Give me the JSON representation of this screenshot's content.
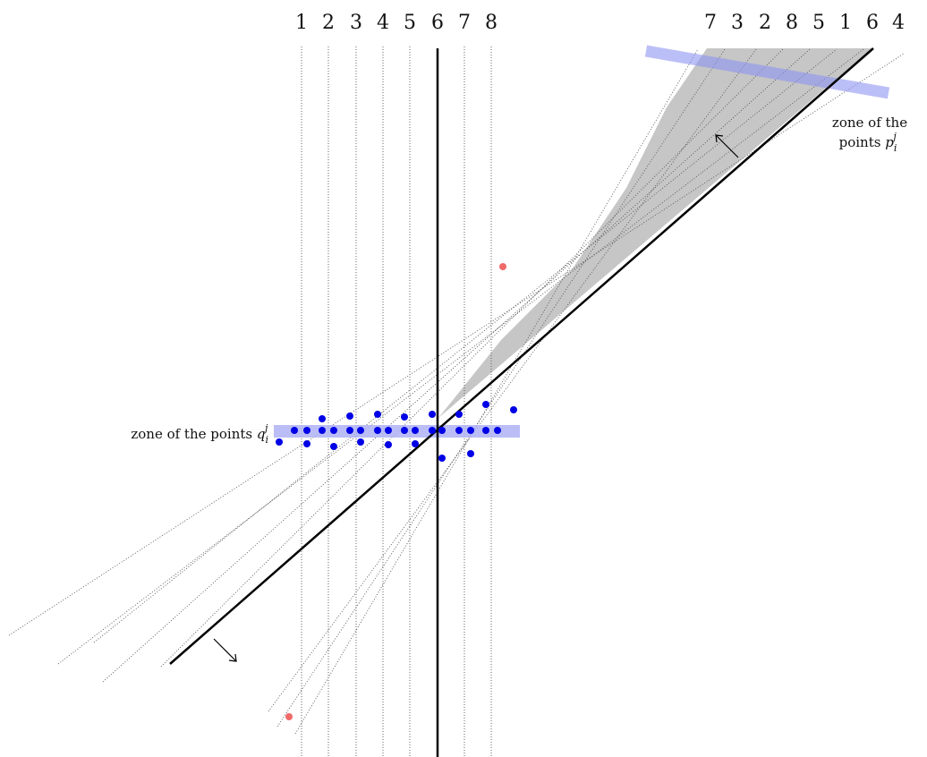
{
  "top_labels_left": [
    "1",
    "2",
    "3",
    "4",
    "5",
    "6",
    "7",
    "8"
  ],
  "top_labels_right": [
    "7",
    "3",
    "2",
    "8",
    "5",
    "1",
    "6",
    "4"
  ],
  "zone_q": {
    "prefix": "zone of the points ",
    "symbol": "q",
    "sub": "i",
    "sup": "j"
  },
  "zone_p": {
    "line1": "zone of the",
    "line2_prefix": "points ",
    "symbol": "p",
    "sub": "i",
    "sup": "j"
  },
  "colors": {
    "blue_points": "#0000e6",
    "red_points": "#f06a6a",
    "zone_band": "#aeb2f5",
    "shaded_region": "#c6c6c6",
    "ink": "#000000"
  }
}
